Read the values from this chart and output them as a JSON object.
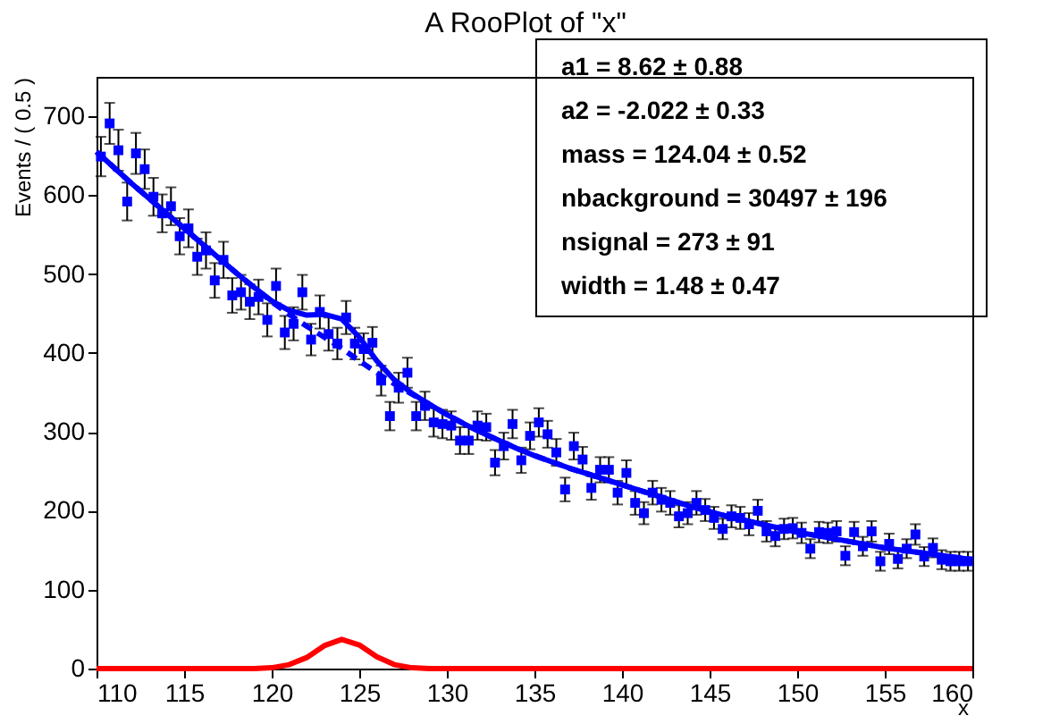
{
  "chart_data": {
    "type": "scatter",
    "title": "A RooPlot of \"x\"",
    "xlabel": "x",
    "ylabel": "Events / ( 0.5 )",
    "xlim": [
      110,
      160
    ],
    "xticks": [
      110,
      115,
      120,
      125,
      130,
      135,
      140,
      145,
      150,
      155,
      160
    ],
    "ylim": [
      0,
      750
    ],
    "yticks": [
      0,
      100,
      200,
      300,
      400,
      500,
      600,
      700
    ],
    "annotations": [
      "a1 =  8.62 ± 0.88",
      "a2 = -2.022 ± 0.33",
      "mass =  124.04 ± 0.52",
      "nbackground =  30497 ± 196",
      "nsignal =  273 ± 91",
      "width =  1.48 ± 0.47"
    ],
    "series": [
      {
        "color": "#0000ff",
        "marker": "square",
        "x": [
          110.25,
          110.75,
          111.25,
          111.75,
          112.25,
          112.75,
          113.25,
          113.75,
          114.25,
          114.75,
          115.25,
          115.75,
          116.25,
          116.75,
          117.25,
          117.75,
          118.25,
          118.75,
          119.25,
          119.75,
          120.25,
          120.75,
          121.25,
          121.75,
          122.25,
          122.75,
          123.25,
          123.75,
          124.25,
          124.75,
          125.25,
          125.75,
          126.25,
          126.75,
          127.25,
          127.75,
          128.25,
          128.75,
          129.25,
          129.75,
          130.25,
          130.75,
          131.25,
          131.75,
          132.25,
          132.75,
          133.25,
          133.75,
          134.25,
          134.75,
          135.25,
          135.75,
          136.25,
          136.75,
          137.25,
          137.75,
          138.25,
          138.75,
          139.25,
          139.75,
          140.25,
          140.75,
          141.25,
          141.75,
          142.25,
          142.75,
          143.25,
          143.75,
          144.25,
          144.75,
          145.25,
          145.75,
          146.25,
          146.75,
          147.25,
          147.75,
          148.25,
          148.75,
          149.25,
          149.75,
          150.25,
          150.75,
          151.25,
          151.75,
          152.25,
          152.75,
          153.25,
          153.75,
          154.25,
          154.75,
          155.25,
          155.75,
          156.25,
          156.75,
          157.25,
          157.75,
          158.25,
          158.75,
          159.25,
          159.75
        ],
        "values": [
          649,
          691,
          657,
          592,
          653,
          633,
          598,
          577,
          586,
          548,
          558,
          522,
          530,
          492,
          518,
          473,
          477,
          465,
          471,
          442,
          485,
          426,
          437,
          477,
          417,
          452,
          424,
          412,
          445,
          412,
          405,
          413,
          365,
          320,
          356,
          375,
          320,
          333,
          312,
          310,
          308,
          289,
          289,
          308,
          306,
          261,
          282,
          310,
          264,
          295,
          312,
          297,
          274,
          227,
          282,
          265,
          229,
          252,
          252,
          223,
          248,
          210,
          197,
          223,
          214,
          210,
          193,
          197,
          210,
          201,
          191,
          177,
          193,
          191,
          183,
          200,
          174,
          168,
          177,
          178,
          172,
          152,
          173,
          172,
          174,
          143,
          173,
          155,
          174,
          136,
          158,
          139,
          152,
          170,
          142,
          153,
          138,
          136,
          136,
          136
        ],
        "errors": [
          25,
          26,
          26,
          24,
          26,
          25,
          24,
          24,
          24,
          23,
          24,
          23,
          23,
          22,
          23,
          22,
          22,
          22,
          22,
          21,
          22,
          21,
          21,
          22,
          20,
          21,
          21,
          20,
          21,
          20,
          20,
          20,
          19,
          18,
          19,
          19,
          18,
          18,
          18,
          18,
          18,
          17,
          17,
          18,
          17,
          16,
          17,
          18,
          16,
          17,
          18,
          17,
          17,
          15,
          17,
          16,
          15,
          16,
          16,
          15,
          16,
          15,
          14,
          15,
          15,
          15,
          14,
          14,
          15,
          14,
          14,
          13,
          14,
          14,
          14,
          14,
          13,
          13,
          13,
          13,
          13,
          12,
          13,
          13,
          13,
          12,
          13,
          12,
          13,
          12,
          13,
          12,
          12,
          13,
          12,
          12,
          12,
          12,
          12,
          12
        ]
      },
      {
        "type": "line",
        "color": "#0000ff",
        "line_style": "dashed",
        "x": [
          110,
          111,
          112,
          113,
          114,
          115,
          116,
          117,
          118,
          119,
          120,
          121,
          122,
          123,
          124,
          125,
          126,
          127,
          128,
          129,
          130,
          131,
          132,
          133,
          134,
          135,
          136,
          137,
          138,
          139,
          140,
          141,
          142,
          143,
          144,
          145,
          146,
          147,
          148,
          149,
          150,
          151,
          152,
          153,
          154,
          155,
          156,
          157,
          158,
          159,
          160
        ],
        "values": [
          655,
          635,
          615,
          596,
          577,
          558,
          539,
          520,
          501,
          483,
          465,
          449,
          434,
          420,
          406,
          390,
          375,
          361,
          348,
          335,
          322,
          310,
          299,
          289,
          279,
          270,
          262,
          254,
          247,
          240,
          233,
          226,
          219,
          212,
          205,
          199,
          193,
          188,
          183,
          178,
          173,
          169,
          165,
          161,
          157,
          153,
          150,
          147,
          144,
          141,
          138
        ]
      },
      {
        "type": "line",
        "color": "#0000ff",
        "line_style": "solid",
        "x": [
          110,
          111,
          112,
          113,
          114,
          115,
          116,
          117,
          118,
          119,
          120,
          121,
          122,
          123,
          124,
          125,
          126,
          127,
          128,
          129,
          130,
          131,
          132,
          133,
          134,
          135,
          136,
          137,
          138,
          139,
          140,
          141,
          142,
          143,
          144,
          145,
          146,
          147,
          148,
          149,
          150,
          151,
          152,
          153,
          154,
          155,
          156,
          157,
          158,
          159,
          160
        ],
        "values": [
          655,
          635,
          615,
          596,
          577,
          558,
          539,
          520,
          501,
          483,
          466,
          454,
          448,
          449,
          443,
          420,
          390,
          366,
          349,
          335,
          322,
          310,
          299,
          289,
          279,
          270,
          262,
          254,
          247,
          240,
          233,
          226,
          219,
          212,
          205,
          199,
          193,
          188,
          183,
          178,
          173,
          169,
          165,
          161,
          157,
          153,
          150,
          147,
          144,
          141,
          138
        ]
      },
      {
        "type": "line",
        "color": "#ff0000",
        "line_style": "solid",
        "x": [
          110,
          111,
          112,
          113,
          114,
          115,
          116,
          117,
          118,
          119,
          120,
          121,
          122,
          123,
          124,
          125,
          126,
          127,
          128,
          129,
          130,
          131,
          132,
          133,
          134,
          135,
          136,
          137,
          138,
          139,
          140,
          141,
          142,
          143,
          144,
          145,
          146,
          147,
          148,
          149,
          150,
          151,
          152,
          153,
          154,
          155,
          156,
          157,
          158,
          159,
          160
        ],
        "values": [
          0,
          0,
          0,
          0,
          0,
          0,
          0,
          0,
          0,
          0,
          1,
          5,
          14,
          29,
          37,
          30,
          15,
          5,
          1,
          0,
          0,
          0,
          0,
          0,
          0,
          0,
          0,
          0,
          0,
          0,
          0,
          0,
          0,
          0,
          0,
          0,
          0,
          0,
          0,
          0,
          0,
          0,
          0,
          0,
          0,
          0,
          0,
          0,
          0,
          0,
          0
        ]
      }
    ]
  }
}
